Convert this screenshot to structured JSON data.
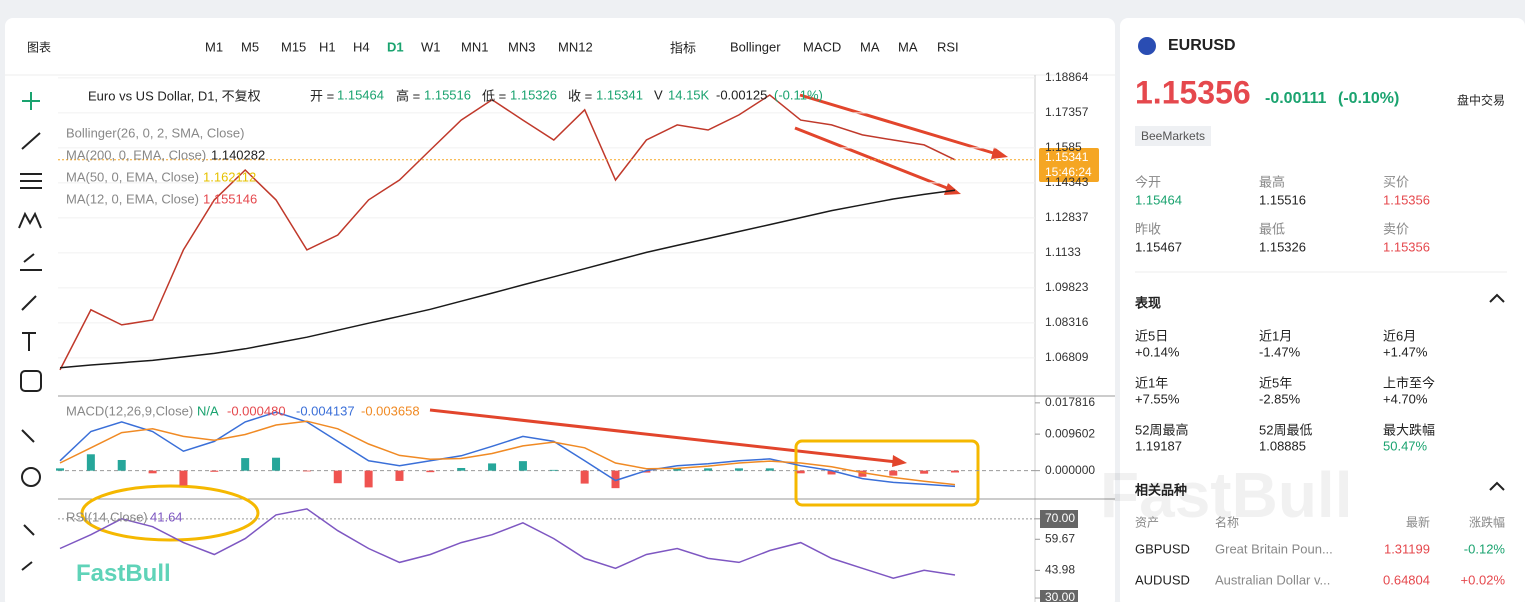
{
  "toolbar": {
    "chart_menu": "图表",
    "timeframes": [
      "M1",
      "M5",
      "M15",
      "H1",
      "H4",
      "D1",
      "W1",
      "MN1",
      "MN3",
      "MN12"
    ],
    "active_timeframe": "D1",
    "indicators": "指标",
    "indicator_buttons": [
      "Bollinger",
      "MACD",
      "MA",
      "MA",
      "RSI"
    ]
  },
  "legend": {
    "symbol": "Euro vs US Dollar, D1, 不复权",
    "ohlcv": [
      {
        "label": "开 =",
        "value": "1.15464"
      },
      {
        "label": "高 =",
        "value": "1.15516"
      },
      {
        "label": "低 =",
        "value": "1.15326"
      },
      {
        "label": "收 =",
        "value": "1.15341"
      },
      {
        "label": "V",
        "value": "14.15K"
      },
      {
        "label": "-0.00125",
        "value": "(-0.11%)"
      }
    ],
    "bollinger": "Bollinger(26, 0, 2, SMA, Close)",
    "ma200": {
      "label": "MA(200, 0, EMA, Close)",
      "value": "1.140282"
    },
    "ma50": {
      "label": "MA(50, 0, EMA, Close)",
      "value": "1.162112"
    },
    "ma12": {
      "label": "MA(12, 0, EMA, Close)",
      "value": "1.155146"
    },
    "macd": {
      "label": "MACD(12,26,9,Close)",
      "na": "N/A",
      "hist": "-0.000480",
      "macd": "-0.004137",
      "signal": "-0.003658"
    },
    "rsi": {
      "label": "RSI(14,Close)",
      "value": "41.64"
    }
  },
  "price_tag": {
    "value": 1.15341,
    "label": "1.15341",
    "time": "15:46:24"
  },
  "brand": "FastBull",
  "chart_data": [
    {
      "type": "line",
      "ylim": [
        1.0521,
        1.1899
      ],
      "yticks": [
        1.18864,
        1.17357,
        1.1585,
        1.14343,
        1.12837,
        1.1133,
        1.09823,
        1.08316,
        1.06809
      ],
      "grid": true,
      "categories": [
        null,
        null,
        null,
        null,
        null,
        null,
        null,
        null,
        null,
        null,
        null,
        null,
        null,
        null,
        null,
        null,
        null,
        null,
        null,
        null,
        null,
        null,
        null,
        null,
        null,
        null,
        null,
        null,
        null,
        null
      ],
      "series": [
        {
          "color": "#c0392b",
          "values": [
            1.0629,
            1.0888,
            1.0823,
            1.0844,
            1.1146,
            1.1361,
            1.149,
            1.1361,
            1.1146,
            1.121,
            1.1361,
            1.1447,
            1.1576,
            1.1705,
            1.1792,
            1.1705,
            1.1619,
            1.1749,
            1.1447,
            1.1619,
            1.1684,
            1.1662,
            1.1727,
            1.1813,
            1.1705,
            1.1684,
            1.1641,
            1.1619,
            1.1598,
            1.1534
          ]
        },
        {
          "color": "#1a1a1a",
          "values": [
            1.0638,
            1.065,
            1.066,
            1.067,
            1.0685,
            1.07,
            1.072,
            1.0745,
            1.077,
            1.08,
            1.083,
            1.086,
            1.089,
            1.0925,
            1.096,
            1.0995,
            1.103,
            1.1065,
            1.11,
            1.1135,
            1.1165,
            1.1195,
            1.1225,
            1.1255,
            1.1285,
            1.1315,
            1.134,
            1.1365,
            1.1385,
            1.1403
          ]
        }
      ]
    },
    {
      "type": "line",
      "ylim": [
        -0.007188,
        0.019356
      ],
      "yticks": [
        0.017816,
        0.009602,
        {
          "value": 0,
          "label": "0.000000"
        }
      ],
      "categories": [
        null,
        null,
        null,
        null,
        null,
        null,
        null,
        null,
        null,
        null,
        null,
        null,
        null,
        null,
        null,
        null,
        null,
        null,
        null,
        null,
        null,
        null,
        null,
        null,
        null,
        null,
        null,
        null,
        null,
        null
      ],
      "histogram": {
        "up_color": "#26a69a",
        "down_color": "#ef5350",
        "values": [
          0.0006,
          0.0043,
          0.0028,
          -0.0007,
          -0.0039,
          -0.0003,
          0.0033,
          0.0034,
          -0.0002,
          -0.0033,
          -0.0044,
          -0.0027,
          -0.0004,
          0.0007,
          0.0019,
          0.0025,
          0.0002,
          -0.0034,
          -0.0046,
          -0.0005,
          0.0007,
          0.0006,
          0.0006,
          0.0006,
          -0.0007,
          -0.001,
          -0.0016,
          -0.0013,
          -0.0008,
          -0.00048
        ]
      },
      "series": [
        {
          "color": "#3a6fd8",
          "values": [
            0.0026,
            0.0103,
            0.0128,
            0.0103,
            0.0051,
            0.0077,
            0.0128,
            0.0154,
            0.0128,
            0.0077,
            0.0026,
            0.0013,
            0.0026,
            0.0039,
            0.0064,
            0.009,
            0.0077,
            0.0026,
            -0.0026,
            0,
            0.0013,
            0.0018,
            0.0026,
            0.0031,
            0.0013,
            0,
            -0.0021,
            -0.0031,
            -0.0036,
            -0.004137
          ]
        },
        {
          "color": "#f08a24",
          "values": [
            0.002,
            0.006,
            0.01,
            0.011,
            0.009,
            0.008,
            0.0095,
            0.012,
            0.013,
            0.011,
            0.007,
            0.004,
            0.003,
            0.0032,
            0.0045,
            0.0065,
            0.0075,
            0.006,
            0.002,
            0.0005,
            0.0006,
            0.0012,
            0.002,
            0.0025,
            0.002,
            0.001,
            -0.0005,
            -0.0018,
            -0.0028,
            -0.003658
          ]
        }
      ]
    },
    {
      "type": "line",
      "ylim": [
        28,
        79.5
      ],
      "yticks": [
        {
          "value": 70,
          "label": "70.00"
        },
        59.67,
        43.98,
        {
          "value": 30,
          "label": "30.00"
        }
      ],
      "categories": [
        null,
        null,
        null,
        null,
        null,
        null,
        null,
        null,
        null,
        null,
        null,
        null,
        null,
        null,
        null,
        null,
        null,
        null,
        null,
        null,
        null,
        null,
        null,
        null,
        null,
        null,
        null,
        null,
        null,
        null
      ],
      "series": [
        {
          "color": "#7e57c2",
          "values": [
            55,
            62,
            70,
            66,
            58,
            52,
            60,
            72,
            75,
            64,
            55,
            48,
            52,
            58,
            62,
            68,
            60,
            50,
            45,
            52,
            55,
            50,
            48,
            54,
            58,
            50,
            45,
            40,
            44,
            41.64
          ]
        }
      ]
    }
  ],
  "quote": {
    "symbol": "EURUSD",
    "price": "1.15356",
    "change": "-0.00111",
    "change_pct": "(-0.10%)",
    "session": "盘中交易",
    "broker": "BeeMarkets",
    "stats": [
      {
        "label": "今开",
        "value": "1.15464"
      },
      {
        "label": "最高",
        "value": "1.15516"
      },
      {
        "label": "买价",
        "value": "1.15356"
      },
      {
        "label": "昨收",
        "value": "1.15467"
      },
      {
        "label": "最低",
        "value": "1.15326"
      },
      {
        "label": "卖价",
        "value": "1.15356"
      }
    ],
    "performance_title": "表现",
    "performance": [
      {
        "label": "近5日",
        "value": "+0.14%"
      },
      {
        "label": "近1月",
        "value": "-1.47%"
      },
      {
        "label": "近6月",
        "value": "+1.47%"
      },
      {
        "label": "近1年",
        "value": "+7.55%"
      },
      {
        "label": "近5年",
        "value": "-2.85%"
      },
      {
        "label": "上市至今",
        "value": "+4.70%"
      },
      {
        "label": "52周最高",
        "value": "1.19187"
      },
      {
        "label": "52周最低",
        "value": "1.08885"
      },
      {
        "label": "最大跌幅",
        "value": "50.47%"
      }
    ],
    "related_title": "相关品种",
    "related_header": [
      "资产",
      "名称",
      "最新",
      "涨跌幅"
    ],
    "related": [
      [
        "GBPUSD",
        "Great Britain Poun...",
        "1.31199",
        "-0.12%"
      ],
      [
        "AUDUSD",
        "Australian Dollar v...",
        "0.64804",
        "+0.02%"
      ]
    ]
  }
}
